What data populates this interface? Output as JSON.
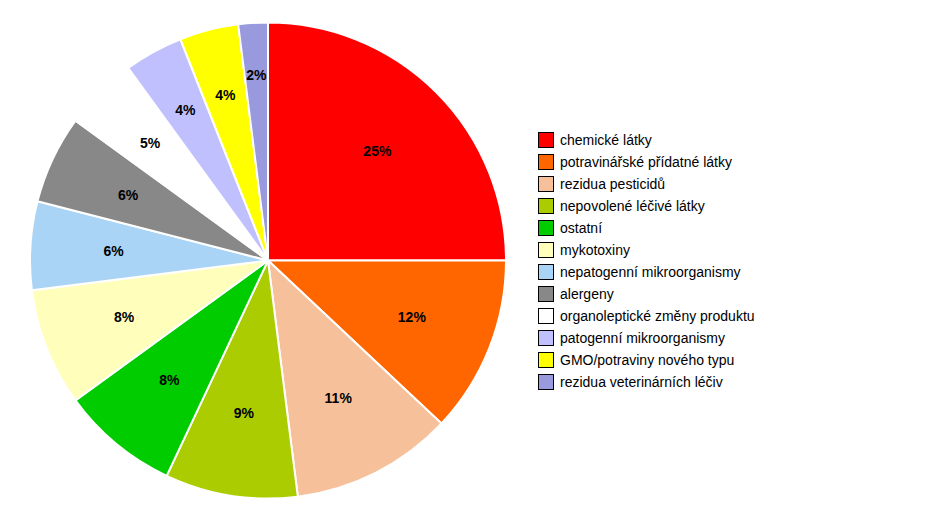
{
  "chart_data": {
    "type": "pie",
    "categories": [
      "chemické látky",
      "potravinářské přídatné látky",
      "rezidua pesticidů",
      "nepovolené léčivé látky",
      "ostatní",
      "mykotoxiny",
      "nepatogenní mikroorganismy",
      "alergeny",
      "organoleptické změny produktu",
      "patogenní mikroorganismy",
      "GMO/potraviny nového typu",
      "rezidua veterinárních léčiv"
    ],
    "values": [
      25,
      12,
      11,
      9,
      8,
      8,
      6,
      6,
      5,
      4,
      4,
      2
    ],
    "value_labels": [
      "25%",
      "12%",
      "11%",
      "9%",
      "8%",
      "8%",
      "6%",
      "6%",
      "5%",
      "4%",
      "4%",
      "2%"
    ],
    "colors": [
      "#ff0000",
      "#ff6600",
      "#f5c09a",
      "#aacc00",
      "#00cc00",
      "#ffffbb",
      "#aad4f5",
      "#888888",
      "#ffffff",
      "#c0c0ff",
      "#ffff00",
      "#9999dd"
    ],
    "data_labels": true,
    "legend": "right"
  }
}
